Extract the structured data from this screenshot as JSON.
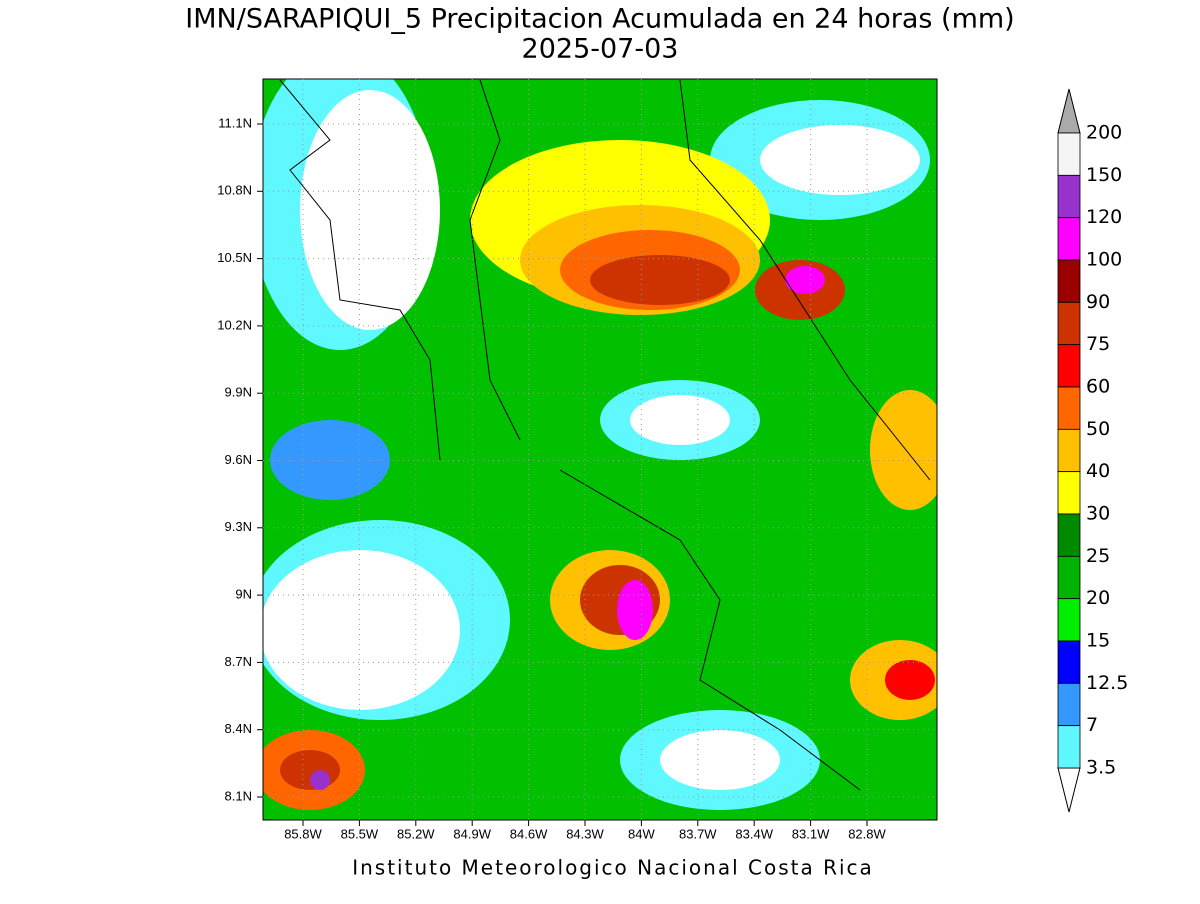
{
  "header": {
    "title": "IMN/SARAPIQUI_5 Precipitacion Acumulada en 24 horas (mm)",
    "subtitle": "2025-07-03"
  },
  "map": {
    "lat_ticks": [
      "11.1N",
      "10.8N",
      "10.5N",
      "10.2N",
      "9.9N",
      "9.6N",
      "9.3N",
      "9N",
      "8.7N",
      "8.4N",
      "8.1N"
    ],
    "lon_ticks": [
      "85.8W",
      "85.5W",
      "85.2W",
      "84.9W",
      "84.6W",
      "84.3W",
      "84W",
      "83.7W",
      "83.4W",
      "83.1W",
      "82.8W"
    ]
  },
  "legend": {
    "labels": [
      "200",
      "150",
      "120",
      "100",
      "90",
      "75",
      "60",
      "50",
      "40",
      "30",
      "25",
      "20",
      "15",
      "12.5",
      "7",
      "3.5"
    ],
    "colors": [
      "#f5f5f5",
      "#9932cc",
      "#ff00ff",
      "#9b0000",
      "#cc3300",
      "#ff0000",
      "#ff6600",
      "#ffc000",
      "#ffff00",
      "#008a00",
      "#00b400",
      "#00ee00",
      "#0000ff",
      "#3399ff",
      "#5ff8ff"
    ],
    "above_color": "#aaaaaa",
    "below_color": "#ffffff"
  },
  "footer": "Instituto Meteorologico Nacional Costa Rica"
}
